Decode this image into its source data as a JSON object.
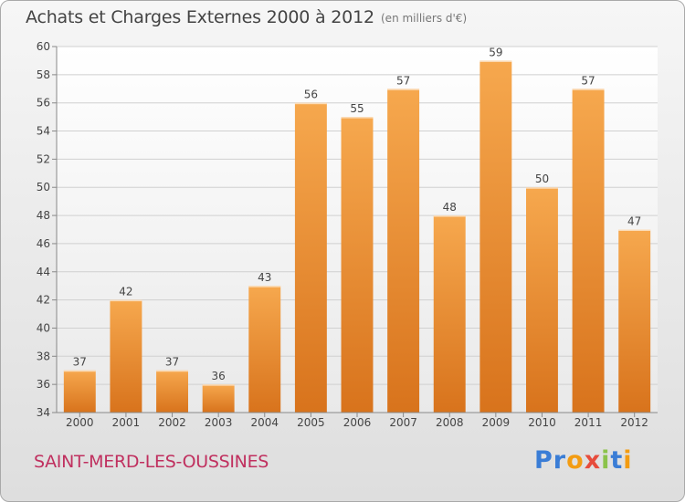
{
  "title": "Achats et Charges Externes 2000 à 2012",
  "subtitle": "(en milliers d'€)",
  "commune": "SAINT-MERD-LES-OUSSINES",
  "logo": {
    "text": "Proxiti",
    "letters": [
      {
        "ch": "P",
        "color": "#3a7dd6"
      },
      {
        "ch": "r",
        "color": "#3a7dd6"
      },
      {
        "ch": "o",
        "color": "#f39c12"
      },
      {
        "ch": "x",
        "color": "#e74c3c"
      },
      {
        "ch": "i",
        "color": "#8bc34a"
      },
      {
        "ch": "t",
        "color": "#3a7dd6"
      },
      {
        "ch": "i",
        "color": "#f39c12"
      }
    ]
  },
  "colors": {
    "bar_top": "#f6a84e",
    "bar_bottom": "#d8731c",
    "grid": "#d0d0d0",
    "axis": "#888888",
    "text": "#444444"
  },
  "chart_data": {
    "type": "bar",
    "categories": [
      "2000",
      "2001",
      "2002",
      "2003",
      "2004",
      "2005",
      "2006",
      "2007",
      "2008",
      "2009",
      "2010",
      "2011",
      "2012"
    ],
    "values": [
      37,
      42,
      37,
      36,
      43,
      56,
      55,
      57,
      48,
      59,
      50,
      57,
      47
    ],
    "title": "Achats et Charges Externes 2000 à 2012",
    "xlabel": "",
    "ylabel": "",
    "ylim": [
      34,
      60
    ],
    "yticks": [
      34,
      36,
      38,
      40,
      42,
      44,
      46,
      48,
      50,
      52,
      54,
      56,
      58,
      60
    ],
    "grid": true,
    "data_labels": true
  }
}
